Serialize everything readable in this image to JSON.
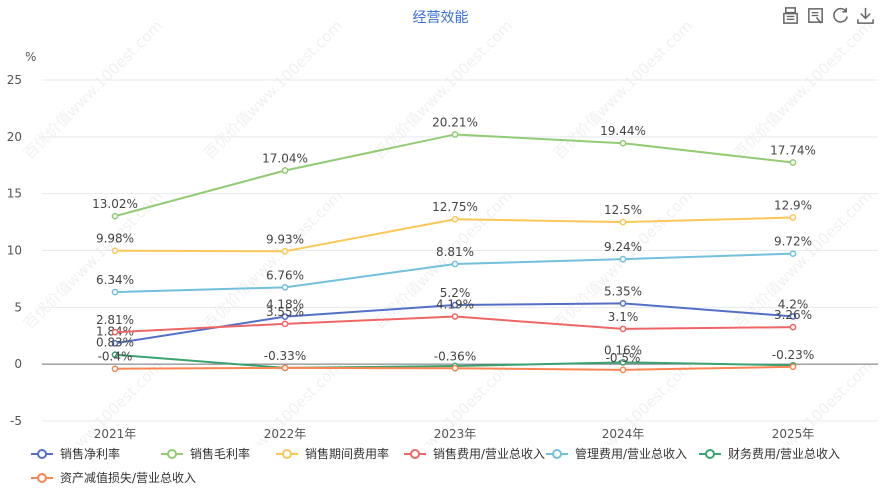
{
  "page_title": "经营效能",
  "toolbox": {
    "icons": [
      "data-view-icon",
      "restore-icon",
      "refresh-icon",
      "download-icon"
    ]
  },
  "watermark": "百优价值www.100est.com",
  "chart_data": {
    "type": "line",
    "title": "经营效能",
    "ylabel": "%",
    "ylim": [
      -5,
      25
    ],
    "yticks": [
      -5,
      0,
      5,
      10,
      15,
      20,
      25
    ],
    "categories": [
      "2021年",
      "2022年",
      "2023年",
      "2024年",
      "2025年"
    ],
    "grid": true,
    "legend_position": "bottom",
    "series": [
      {
        "name": "销售净利率",
        "color": "#5470c6",
        "values": [
          1.84,
          4.18,
          5.2,
          5.35,
          4.2
        ],
        "labels": [
          "1.84%",
          "4.18%",
          "5.2%",
          "5.35%",
          "4.2%"
        ]
      },
      {
        "name": "销售毛利率",
        "color": "#91cc75",
        "values": [
          13.02,
          17.04,
          20.21,
          19.44,
          17.74
        ],
        "labels": [
          "13.02%",
          "17.04%",
          "20.21%",
          "19.44%",
          "17.74%"
        ]
      },
      {
        "name": "销售期间费用率",
        "color": "#fac858",
        "values": [
          9.98,
          9.93,
          12.75,
          12.5,
          12.9
        ],
        "labels": [
          "9.98%",
          "9.93%",
          "12.75%",
          "12.5%",
          "12.9%"
        ]
      },
      {
        "name": "销售费用/营业总收入",
        "color": "#ee6666",
        "values": [
          2.81,
          3.55,
          4.19,
          3.1,
          3.26
        ],
        "labels": [
          "2.81%",
          "3.55%",
          "4.19%",
          "3.1%",
          "3.26%"
        ]
      },
      {
        "name": "管理费用/营业总收入",
        "color": "#73c0de",
        "values": [
          6.34,
          6.76,
          8.81,
          9.24,
          9.72
        ],
        "labels": [
          "6.34%",
          "6.76%",
          "8.81%",
          "9.24%",
          "9.72%"
        ]
      },
      {
        "name": "财务费用/营业总收入",
        "color": "#3ba272",
        "values": [
          0.83,
          -0.33,
          -0.16,
          0.16,
          -0.1
        ],
        "labels": [
          "0.83%",
          "",
          "",
          "0.16%",
          ""
        ]
      },
      {
        "name": "资产减值损失/营业总收入",
        "color": "#fc8452",
        "values": [
          -0.4,
          -0.33,
          -0.36,
          -0.5,
          -0.23
        ],
        "labels": [
          "-0.4%",
          "-0.33%",
          "-0.36%",
          "-0.5%",
          "-0.23%"
        ]
      }
    ]
  }
}
